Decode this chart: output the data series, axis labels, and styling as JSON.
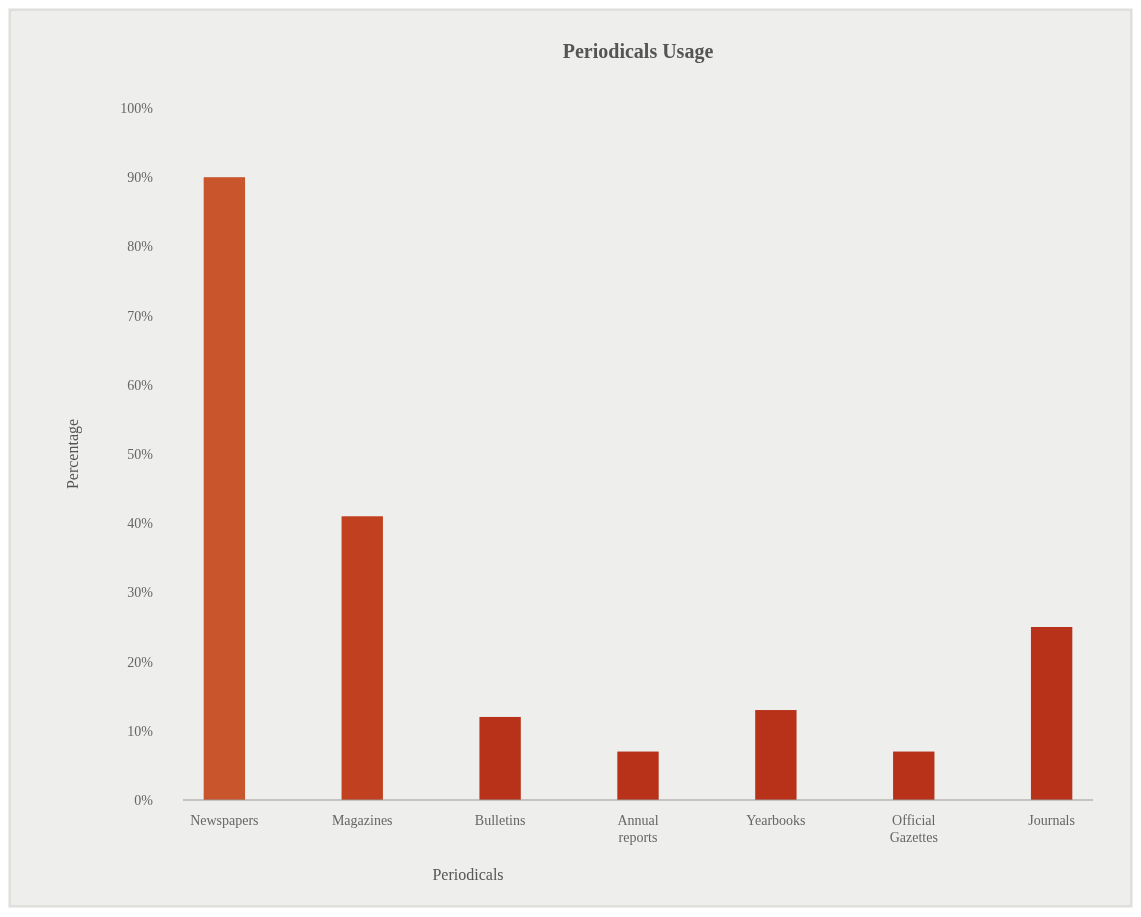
{
  "chart_data": {
    "type": "bar",
    "title": "Periodicals Usage",
    "xlabel": "Periodicals",
    "ylabel": "Percentage",
    "categories": [
      "Newspapers",
      "Magazines",
      "Bulletins",
      "Annual reports",
      "Yearbooks",
      "Official Gazettes",
      "Journals"
    ],
    "values": [
      90,
      41,
      12,
      7,
      13,
      7,
      25
    ],
    "colors": [
      "#c9552c",
      "#c0401f",
      "#b8321a",
      "#b8321a",
      "#b8321a",
      "#b8321a",
      "#b8321a"
    ],
    "ylim": [
      0,
      100
    ],
    "yticks": [
      {
        "value": 0,
        "label": "0%"
      },
      {
        "value": 10,
        "label": "10%"
      },
      {
        "value": 20,
        "label": "20%"
      },
      {
        "value": 30,
        "label": "30%"
      },
      {
        "value": 40,
        "label": "40%"
      },
      {
        "value": 50,
        "label": "50%"
      },
      {
        "value": 60,
        "label": "60%"
      },
      {
        "value": 70,
        "label": "70%"
      },
      {
        "value": 80,
        "label": "80%"
      },
      {
        "value": 90,
        "label": "90%"
      },
      {
        "value": 100,
        "label": "100%"
      }
    ],
    "grid": false
  }
}
